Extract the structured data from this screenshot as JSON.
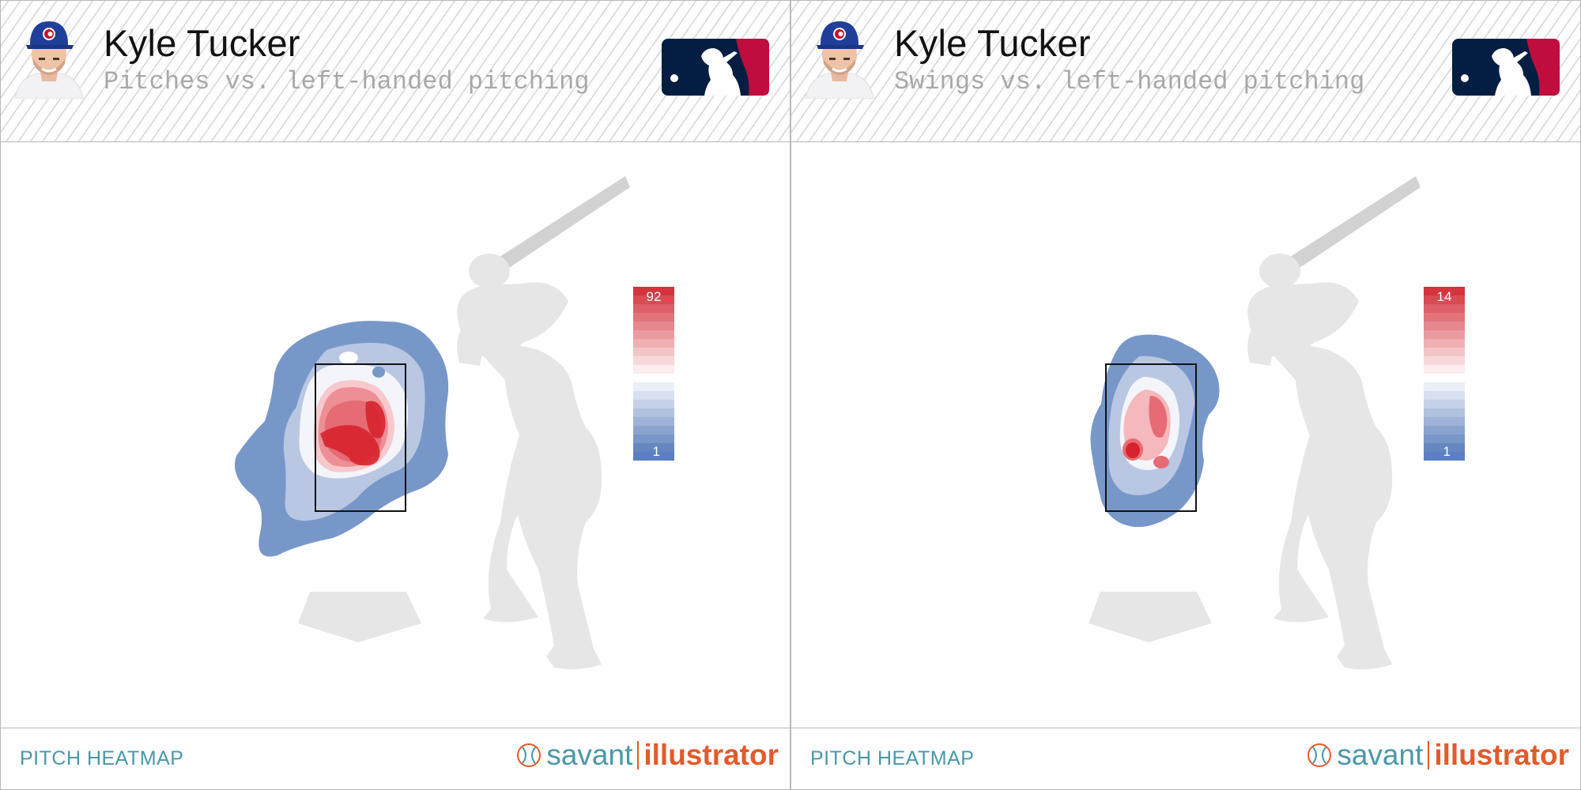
{
  "panels": [
    {
      "player_name": "Kyle Tucker",
      "subtitle": "Pitches vs. left-handed pitching",
      "footer_label": "PITCH HEATMAP",
      "brand": {
        "part1": "savant",
        "part2": "illustrator"
      },
      "legend": {
        "max": "92",
        "min": "1"
      }
    },
    {
      "player_name": "Kyle Tucker",
      "subtitle": "Swings vs. left-handed pitching",
      "footer_label": "PITCH HEATMAP",
      "brand": {
        "part1": "savant",
        "part2": "illustrator"
      },
      "legend": {
        "max": "14",
        "min": "1"
      }
    }
  ],
  "colors": {
    "hot": "#d7232e",
    "cold": "#5b7fc2",
    "neutral": "#ffffff",
    "silhouette": "#e6e6e6",
    "accent_teal": "#4a98a6",
    "accent_orange": "#e45a2a",
    "mlb_navy": "#041e42",
    "mlb_red": "#bf0d3e"
  },
  "chart_data": [
    {
      "type": "heatmap",
      "title": "Pitches vs. left-handed pitching",
      "metric": "pitch count",
      "scale_min": 1,
      "scale_max": 92,
      "hot_spot": "center of strike zone, slightly low and inside",
      "spread": "wide, extending below and away from the zone",
      "strike_zone": true
    },
    {
      "type": "heatmap",
      "title": "Swings vs. left-handed pitching",
      "metric": "swing count",
      "scale_min": 1,
      "scale_max": 14,
      "hot_spot": "middle-left of strike zone with a secondary hot area middle-right",
      "spread": "mostly contained to the strike zone",
      "strike_zone": true
    }
  ]
}
